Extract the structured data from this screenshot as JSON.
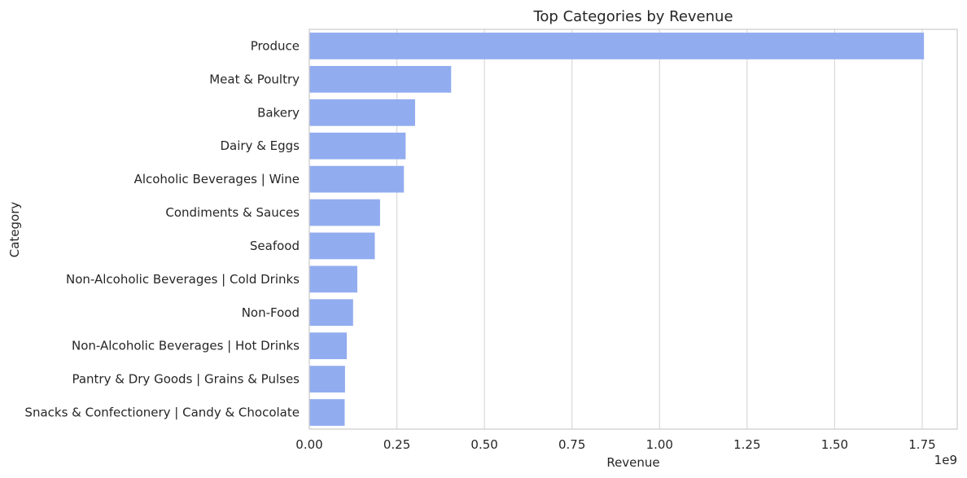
{
  "chart_data": {
    "type": "bar",
    "orientation": "horizontal",
    "title": "Top Categories by Revenue",
    "xlabel": "Revenue",
    "ylabel": "Category",
    "x_offset_label": "1e9",
    "xlim": [
      0,
      1.85
    ],
    "xticks": [
      "0.00",
      "0.25",
      "0.50",
      "0.75",
      "1.00",
      "1.25",
      "1.50",
      "1.75"
    ],
    "xtick_values": [
      0,
      0.25,
      0.5,
      0.75,
      1.0,
      1.25,
      1.5,
      1.75
    ],
    "grid": true,
    "bar_color": "#92ACF0",
    "categories": [
      "Produce",
      "Meat & Poultry",
      "Bakery",
      "Dairy & Eggs",
      "Alcoholic Beverages | Wine",
      "Condiments & Sauces",
      "Seafood",
      "Non-Alcoholic Beverages | Cold Drinks",
      "Non-Food",
      "Non-Alcoholic Beverages | Hot Drinks",
      "Pantry & Dry Goods | Grains & Pulses",
      "Snacks & Confectionery | Candy & Chocolate"
    ],
    "values": [
      1.755,
      0.405,
      0.302,
      0.275,
      0.27,
      0.202,
      0.187,
      0.137,
      0.125,
      0.107,
      0.102,
      0.101
    ]
  }
}
